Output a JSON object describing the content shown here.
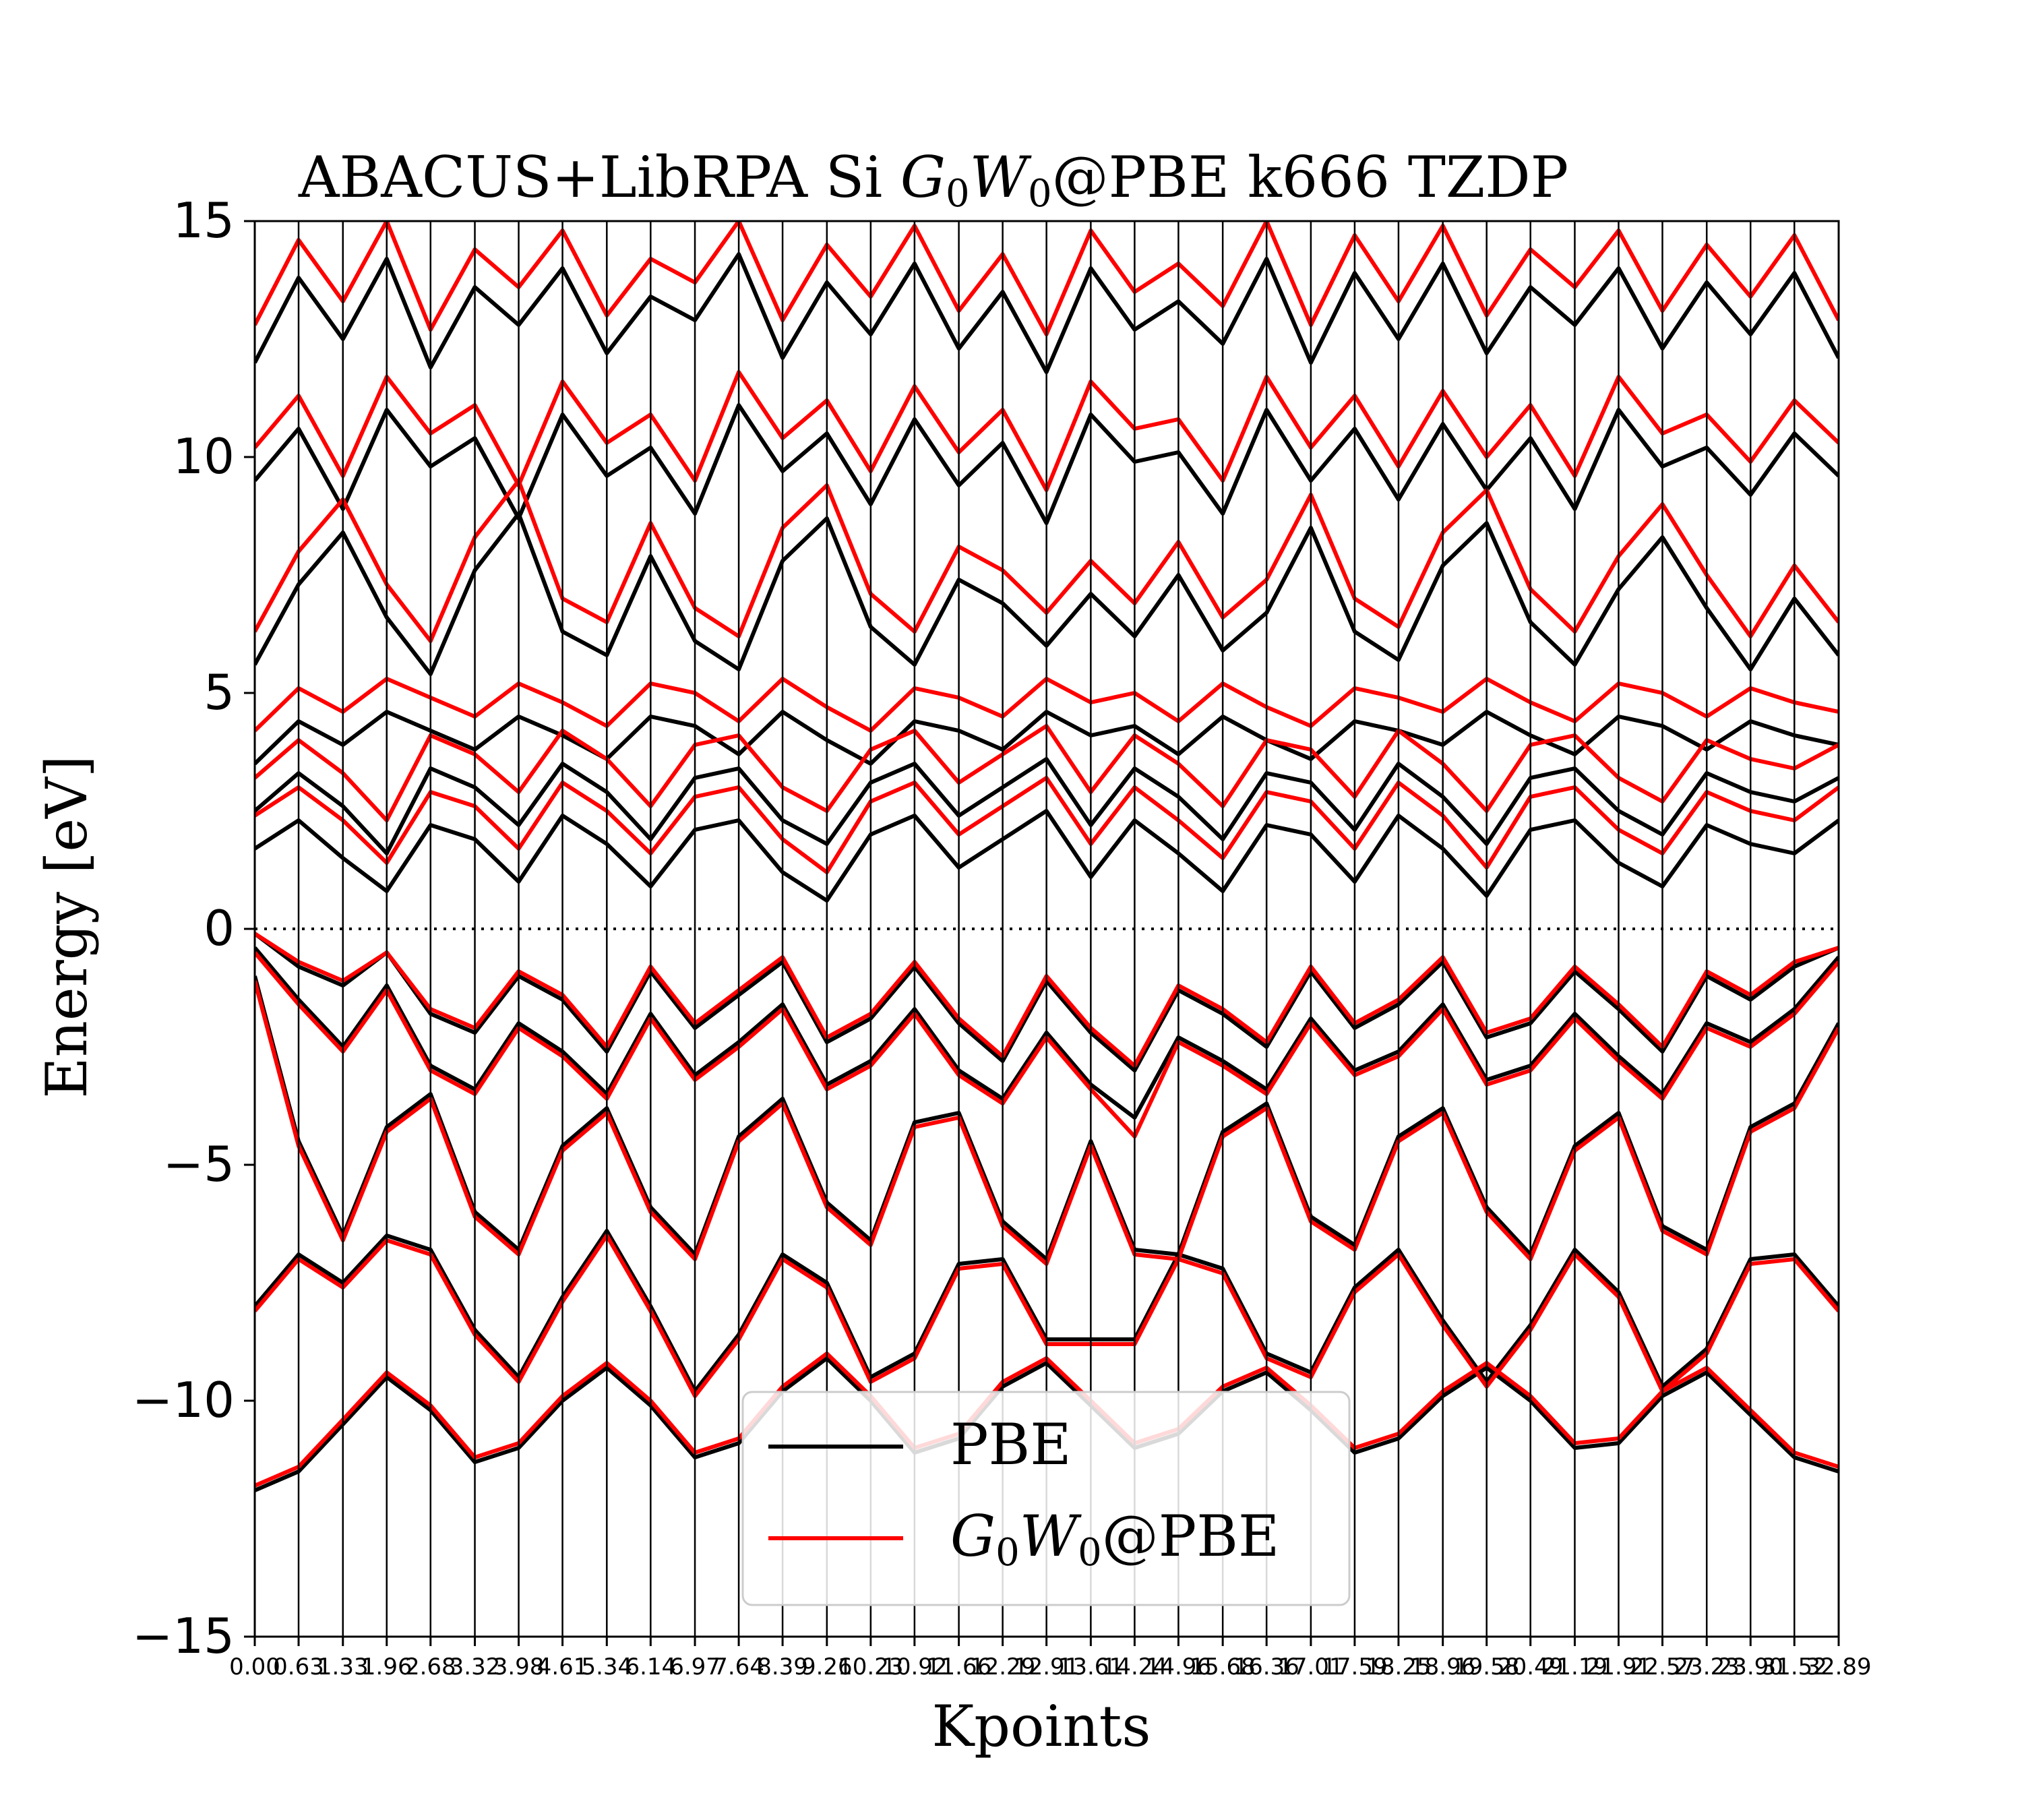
{
  "chart_data": {
    "type": "line",
    "title": "ABACUS+LibRPA Si G0W0@PBE k666 TZDP",
    "title_parts": {
      "prefix": "ABACUS+LibRPA Si ",
      "g": "G",
      "g_sub": "0",
      "w": "W",
      "w_sub": "0",
      "suffix": "@PBE k666 TZDP"
    },
    "xlabel": "Kpoints",
    "ylabel": "Energy [eV]",
    "ylim": [
      -15,
      15
    ],
    "xlim": [
      0.0,
      32.89
    ],
    "yticks": [
      -15,
      -10,
      -5,
      0,
      5,
      10,
      15
    ],
    "ytick_labels": [
      "−15",
      "−10",
      "−5",
      "0",
      "5",
      "10",
      "15"
    ],
    "xticks": [
      0.0,
      0.91,
      1.83,
      2.74,
      3.65,
      4.57,
      5.48,
      6.39,
      7.31,
      8.22,
      9.14,
      10.05,
      10.96,
      11.88,
      12.79,
      13.7,
      14.62,
      15.53,
      16.44,
      17.36,
      18.27,
      19.18,
      20.1,
      21.01,
      21.93,
      22.84,
      23.75,
      24.67,
      25.58,
      26.49,
      27.41,
      28.32,
      29.23,
      30.15,
      31.06,
      31.97,
      32.89
    ],
    "xtick_labels": [
      "0.00",
      "0.63",
      "1.33",
      "1.96",
      "2.68",
      "3.32",
      "3.98",
      "4.61",
      "5.34",
      "6.14",
      "6.97",
      "7.64",
      "8.39",
      "9.26",
      "10.23",
      "10.92",
      "11.66",
      "12.29",
      "12.91",
      "13.61",
      "14.24",
      "14.96",
      "15.68",
      "16.36",
      "17.01",
      "17.59",
      "18.25",
      "18.96",
      "19.58",
      "20.49",
      "21.19",
      "21.91",
      "22.57",
      "23.23",
      "23.90",
      "31.52",
      "32.89"
    ],
    "fermi_level": 0,
    "vertical_lines": "at each x tick",
    "grid": false,
    "legend": {
      "placement": "lower-center",
      "entries": [
        {
          "label": "PBE",
          "color": "#000000"
        },
        {
          "label_parts": {
            "g": "G",
            "g_sub": "0",
            "w": "W",
            "w_sub": "0",
            "suffix": "@PBE"
          },
          "label": "G0W0@PBE",
          "color": "#ff0000"
        }
      ]
    },
    "series": [
      {
        "name": "PBE",
        "color": "#000000",
        "bands": [
          {
            "values": [
              -11.9,
              -11.5,
              -10.5,
              -9.5,
              -10.2,
              -11.3,
              -11.0,
              -10.0,
              -9.3,
              -10.1,
              -11.2,
              -10.9,
              -9.8,
              -9.1,
              -10.0,
              -11.1,
              -10.8,
              -9.7,
              -9.2,
              -10.1,
              -11.0,
              -10.7,
              -9.8,
              -9.4,
              -10.2,
              -11.1,
              -10.8,
              -9.9,
              -9.3,
              -10.0,
              -11.0,
              -10.9,
              -9.9,
              -9.4,
              -10.3,
              -11.2,
              -11.5
            ]
          },
          {
            "values": [
              -0.1,
              -0.8,
              -1.2,
              -0.5,
              -1.8,
              -2.2,
              -1.0,
              -1.5,
              -2.6,
              -0.9,
              -2.1,
              -1.4,
              -0.7,
              -2.4,
              -1.9,
              -0.8,
              -2.0,
              -2.8,
              -1.1,
              -2.2,
              -3.0,
              -1.3,
              -1.8,
              -2.5,
              -0.9,
              -2.1,
              -1.6,
              -0.7,
              -2.3,
              -2.0,
              -0.9,
              -1.7,
              -2.6,
              -1.0,
              -1.5,
              -0.8,
              -0.4
            ]
          },
          {
            "values": [
              -0.4,
              -1.5,
              -2.5,
              -1.2,
              -2.9,
              -3.4,
              -2.0,
              -2.6,
              -3.5,
              -1.8,
              -3.1,
              -2.4,
              -1.6,
              -3.3,
              -2.8,
              -1.7,
              -3.0,
              -3.6,
              -2.2,
              -3.3,
              -4.0,
              -2.3,
              -2.8,
              -3.4,
              -1.9,
              -3.0,
              -2.6,
              -1.6,
              -3.2,
              -2.9,
              -1.8,
              -2.7,
              -3.5,
              -2.0,
              -2.4,
              -1.7,
              -0.6
            ]
          },
          {
            "values": [
              -1.0,
              -4.5,
              -6.5,
              -4.2,
              -3.5,
              -6.0,
              -6.8,
              -4.6,
              -3.8,
              -5.9,
              -6.9,
              -4.4,
              -3.6,
              -5.8,
              -6.6,
              -4.1,
              -3.9,
              -6.2,
              -7.0,
              -4.5,
              -6.8,
              -6.9,
              -4.3,
              -3.7,
              -6.1,
              -6.7,
              -4.4,
              -3.8,
              -5.9,
              -6.9,
              -4.6,
              -3.9,
              -6.3,
              -6.8,
              -4.2,
              -3.7,
              -2.0
            ]
          },
          {
            "values": [
              -8.0,
              -6.9,
              -7.5,
              -6.5,
              -6.8,
              -8.5,
              -9.5,
              -7.8,
              -6.4,
              -8.0,
              -9.8,
              -8.6,
              -6.9,
              -7.5,
              -9.5,
              -9.0,
              -7.1,
              -7.0,
              -8.7,
              -8.7,
              -8.7,
              -6.9,
              -7.2,
              -9.0,
              -9.4,
              -7.6,
              -6.8,
              -8.3,
              -9.6,
              -8.4,
              -6.8,
              -7.7,
              -9.7,
              -8.9,
              -7.0,
              -6.9,
              -8.0
            ]
          },
          {
            "values": [
              1.7,
              2.3,
              1.5,
              0.8,
              2.2,
              1.9,
              1.0,
              2.4,
              1.8,
              0.9,
              2.1,
              2.3,
              1.2,
              0.6,
              2.0,
              2.4,
              1.3,
              1.9,
              2.5,
              1.1,
              2.3,
              1.6,
              0.8,
              2.2,
              2.0,
              1.0,
              2.4,
              1.7,
              0.7,
              2.1,
              2.3,
              1.4,
              0.9,
              2.2,
              1.8,
              1.6,
              2.3
            ]
          },
          {
            "values": [
              2.5,
              3.3,
              2.6,
              1.6,
              3.4,
              3.0,
              2.2,
              3.5,
              2.9,
              1.9,
              3.2,
              3.4,
              2.3,
              1.8,
              3.1,
              3.5,
              2.4,
              3.0,
              3.6,
              2.2,
              3.4,
              2.8,
              1.9,
              3.3,
              3.1,
              2.1,
              3.5,
              2.8,
              1.8,
              3.2,
              3.4,
              2.5,
              2.0,
              3.3,
              2.9,
              2.7,
              3.2
            ]
          },
          {
            "values": [
              3.5,
              4.4,
              3.9,
              4.6,
              4.2,
              3.8,
              4.5,
              4.1,
              3.6,
              4.5,
              4.3,
              3.7,
              4.6,
              4.0,
              3.5,
              4.4,
              4.2,
              3.8,
              4.6,
              4.1,
              4.3,
              3.7,
              4.5,
              4.0,
              3.6,
              4.4,
              4.2,
              3.9,
              4.6,
              4.1,
              3.7,
              4.5,
              4.3,
              3.8,
              4.4,
              4.1,
              3.9
            ]
          },
          {
            "values": [
              5.6,
              7.3,
              8.4,
              6.6,
              5.4,
              7.6,
              8.8,
              6.3,
              5.8,
              7.9,
              6.1,
              5.5,
              7.8,
              8.7,
              6.4,
              5.6,
              7.4,
              6.9,
              6.0,
              7.1,
              6.2,
              7.5,
              5.9,
              6.7,
              8.5,
              6.3,
              5.7,
              7.7,
              8.6,
              6.5,
              5.6,
              7.2,
              8.3,
              6.8,
              5.5,
              7.0,
              5.8
            ]
          },
          {
            "values": [
              9.5,
              10.6,
              8.9,
              11.0,
              9.8,
              10.4,
              8.7,
              10.9,
              9.6,
              10.2,
              8.8,
              11.1,
              9.7,
              10.5,
              9.0,
              10.8,
              9.4,
              10.3,
              8.6,
              10.9,
              9.9,
              10.1,
              8.8,
              11.0,
              9.5,
              10.6,
              9.1,
              10.7,
              9.3,
              10.4,
              8.9,
              11.0,
              9.8,
              10.2,
              9.2,
              10.5,
              9.6
            ]
          },
          {
            "values": [
              12.0,
              13.8,
              12.5,
              14.2,
              11.9,
              13.6,
              12.8,
              14.0,
              12.2,
              13.4,
              12.9,
              14.3,
              12.1,
              13.7,
              12.6,
              14.1,
              12.3,
              13.5,
              11.8,
              14.0,
              12.7,
              13.3,
              12.4,
              14.2,
              12.0,
              13.9,
              12.5,
              14.1,
              12.2,
              13.6,
              12.8,
              14.0,
              12.3,
              13.7,
              12.6,
              13.9,
              12.1
            ]
          }
        ]
      },
      {
        "name": "G0W0@PBE",
        "color": "#ff0000",
        "bands": [
          {
            "values": [
              -11.8,
              -11.4,
              -10.4,
              -9.4,
              -10.1,
              -11.2,
              -10.9,
              -9.9,
              -9.2,
              -10.0,
              -11.1,
              -10.8,
              -9.7,
              -9.0,
              -9.9,
              -11.0,
              -10.7,
              -9.6,
              -9.1,
              -10.0,
              -10.9,
              -10.6,
              -9.7,
              -9.3,
              -10.1,
              -11.0,
              -10.7,
              -9.8,
              -9.2,
              -9.9,
              -10.9,
              -10.8,
              -9.8,
              -9.3,
              -10.2,
              -11.1,
              -11.4
            ]
          },
          {
            "values": [
              -0.1,
              -0.7,
              -1.1,
              -0.5,
              -1.7,
              -2.1,
              -0.9,
              -1.4,
              -2.5,
              -0.8,
              -2.0,
              -1.3,
              -0.6,
              -2.3,
              -1.8,
              -0.7,
              -1.9,
              -2.7,
              -1.0,
              -2.1,
              -2.9,
              -1.2,
              -1.7,
              -2.4,
              -0.8,
              -2.0,
              -1.5,
              -0.6,
              -2.2,
              -1.9,
              -0.8,
              -1.6,
              -2.5,
              -0.9,
              -1.4,
              -0.7,
              -0.4
            ]
          },
          {
            "values": [
              -0.5,
              -1.6,
              -2.6,
              -1.3,
              -3.0,
              -3.5,
              -2.1,
              -2.7,
              -3.6,
              -1.9,
              -3.2,
              -2.5,
              -1.7,
              -3.4,
              -2.9,
              -1.8,
              -3.1,
              -3.7,
              -2.3,
              -3.4,
              -4.4,
              -2.4,
              -2.9,
              -3.5,
              -2.0,
              -3.1,
              -2.7,
              -1.7,
              -3.3,
              -3.0,
              -1.9,
              -2.8,
              -3.6,
              -2.1,
              -2.5,
              -1.8,
              -0.7
            ]
          },
          {
            "values": [
              -1.1,
              -4.6,
              -6.6,
              -4.3,
              -3.6,
              -6.1,
              -6.9,
              -4.7,
              -3.9,
              -6.0,
              -7.0,
              -4.5,
              -3.7,
              -5.9,
              -6.7,
              -4.2,
              -4.0,
              -6.3,
              -7.1,
              -4.6,
              -6.9,
              -7.0,
              -4.4,
              -3.8,
              -6.2,
              -6.8,
              -4.5,
              -3.9,
              -6.0,
              -7.0,
              -4.7,
              -4.0,
              -6.4,
              -6.9,
              -4.3,
              -3.8,
              -2.1
            ]
          },
          {
            "values": [
              -8.1,
              -7.0,
              -7.6,
              -6.6,
              -6.9,
              -8.6,
              -9.6,
              -7.9,
              -6.5,
              -8.1,
              -9.9,
              -8.7,
              -7.0,
              -7.6,
              -9.6,
              -9.1,
              -7.2,
              -7.1,
              -8.8,
              -8.8,
              -8.8,
              -7.0,
              -7.3,
              -9.1,
              -9.5,
              -7.7,
              -6.9,
              -8.4,
              -9.7,
              -8.5,
              -6.9,
              -7.8,
              -9.8,
              -9.0,
              -7.1,
              -7.0,
              -8.1
            ]
          },
          {
            "values": [
              2.4,
              3.0,
              2.3,
              1.4,
              2.9,
              2.6,
              1.7,
              3.1,
              2.5,
              1.6,
              2.8,
              3.0,
              1.9,
              1.2,
              2.7,
              3.1,
              2.0,
              2.6,
              3.2,
              1.8,
              3.0,
              2.3,
              1.5,
              2.9,
              2.7,
              1.7,
              3.1,
              2.4,
              1.3,
              2.8,
              3.0,
              2.1,
              1.6,
              2.9,
              2.5,
              2.3,
              3.0
            ]
          },
          {
            "values": [
              3.2,
              4.0,
              3.3,
              2.3,
              4.1,
              3.7,
              2.9,
              4.2,
              3.6,
              2.6,
              3.9,
              4.1,
              3.0,
              2.5,
              3.8,
              4.2,
              3.1,
              3.7,
              4.3,
              2.9,
              4.1,
              3.5,
              2.6,
              4.0,
              3.8,
              2.8,
              4.2,
              3.5,
              2.5,
              3.9,
              4.1,
              3.2,
              2.7,
              4.0,
              3.6,
              3.4,
              3.9
            ]
          },
          {
            "values": [
              4.2,
              5.1,
              4.6,
              5.3,
              4.9,
              4.5,
              5.2,
              4.8,
              4.3,
              5.2,
              5.0,
              4.4,
              5.3,
              4.7,
              4.2,
              5.1,
              4.9,
              4.5,
              5.3,
              4.8,
              5.0,
              4.4,
              5.2,
              4.7,
              4.3,
              5.1,
              4.9,
              4.6,
              5.3,
              4.8,
              4.4,
              5.2,
              5.0,
              4.5,
              5.1,
              4.8,
              4.6
            ]
          },
          {
            "values": [
              6.3,
              8.0,
              9.1,
              7.3,
              6.1,
              8.3,
              9.5,
              7.0,
              6.5,
              8.6,
              6.8,
              6.2,
              8.5,
              9.4,
              7.1,
              6.3,
              8.1,
              7.6,
              6.7,
              7.8,
              6.9,
              8.2,
              6.6,
              7.4,
              9.2,
              7.0,
              6.4,
              8.4,
              9.3,
              7.2,
              6.3,
              7.9,
              9.0,
              7.5,
              6.2,
              7.7,
              6.5
            ]
          },
          {
            "values": [
              10.2,
              11.3,
              9.6,
              11.7,
              10.5,
              11.1,
              9.4,
              11.6,
              10.3,
              10.9,
              9.5,
              11.8,
              10.4,
              11.2,
              9.7,
              11.5,
              10.1,
              11.0,
              9.3,
              11.6,
              10.6,
              10.8,
              9.5,
              11.7,
              10.2,
              11.3,
              9.8,
              11.4,
              10.0,
              11.1,
              9.6,
              11.7,
              10.5,
              10.9,
              9.9,
              11.2,
              10.3
            ]
          },
          {
            "values": [
              12.8,
              14.6,
              13.3,
              15.0,
              12.7,
              14.4,
              13.6,
              14.8,
              13.0,
              14.2,
              13.7,
              15.0,
              12.9,
              14.5,
              13.4,
              14.9,
              13.1,
              14.3,
              12.6,
              14.8,
              13.5,
              14.1,
              13.2,
              15.0,
              12.8,
              14.7,
              13.3,
              14.9,
              13.0,
              14.4,
              13.6,
              14.8,
              13.1,
              14.5,
              13.4,
              14.7,
              12.9
            ]
          }
        ]
      }
    ]
  }
}
